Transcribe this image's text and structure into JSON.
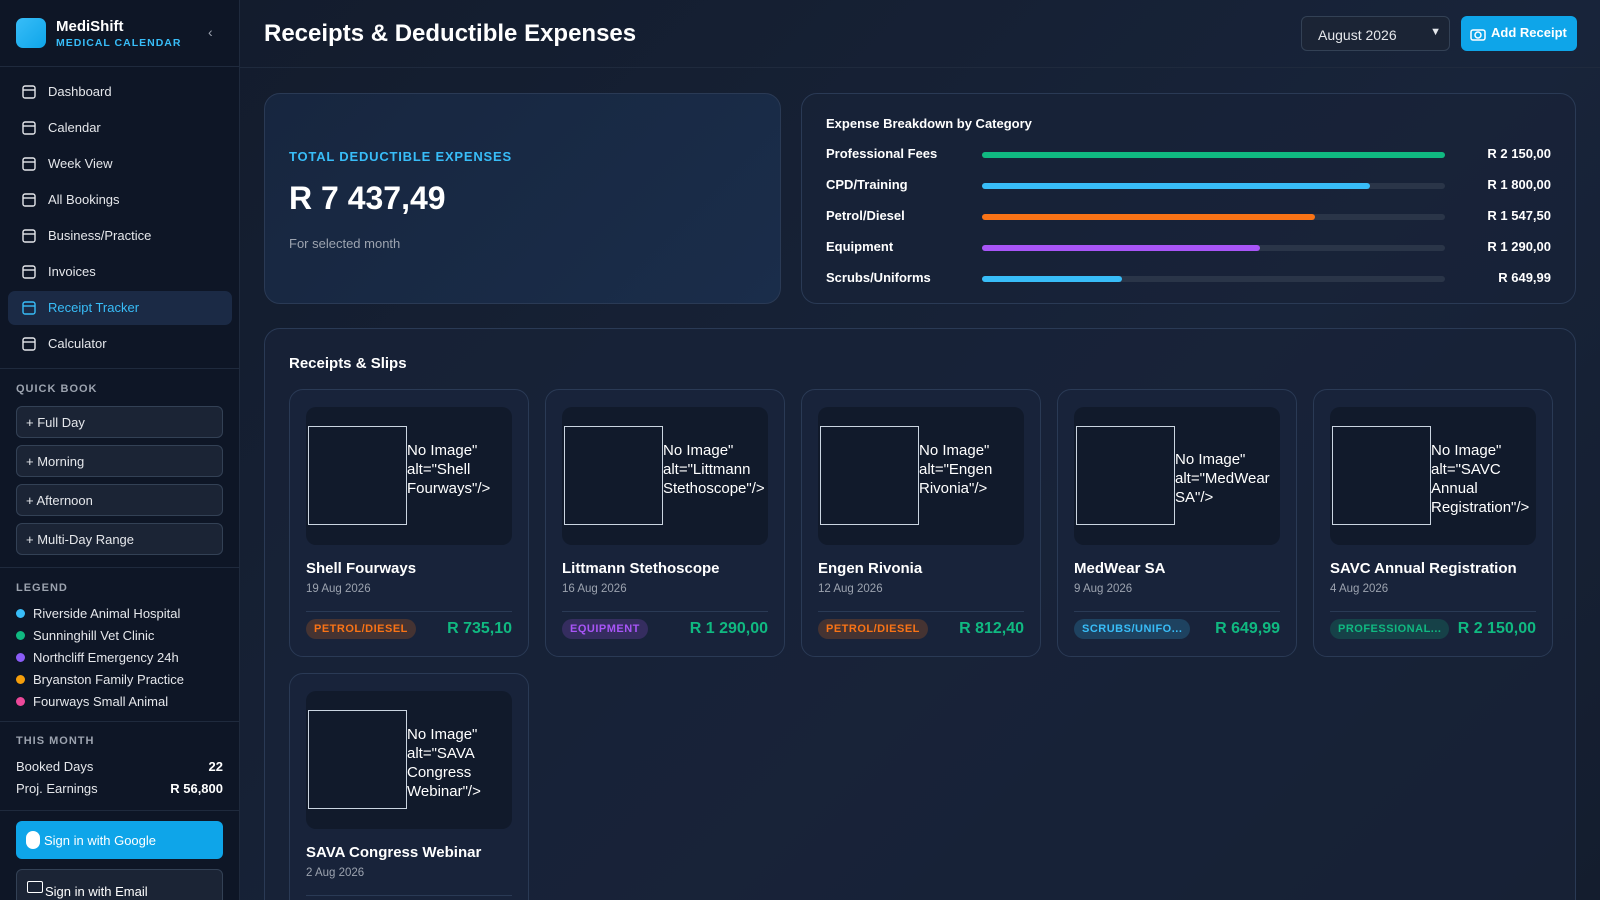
{
  "sidebar": {
    "brand": {
      "name": "MediShift",
      "tagline": "MEDICAL CALENDAR"
    },
    "nav": [
      "Dashboard",
      "Calendar",
      "Week View",
      "All Bookings",
      "Business/Practice",
      "Invoices",
      "Receipt Tracker",
      "Calculator"
    ],
    "quick_book": {
      "title": "QUICK BOOK",
      "buttons": [
        "+ Full Day",
        "+ Morning",
        "+ Afternoon",
        "+ Multi-Day Range"
      ]
    },
    "legend": {
      "title": "LEGEND",
      "items": [
        {
          "label": "Riverside Animal Hospital",
          "color": "#38bdf8"
        },
        {
          "label": "Sunninghill Vet Clinic",
          "color": "#10b981"
        },
        {
          "label": "Northcliff Emergency 24h",
          "color": "#8b5cf6"
        },
        {
          "label": "Bryanston Family Practice",
          "color": "#f59e0b"
        },
        {
          "label": "Fourways Small Animal",
          "color": "#ec4899"
        }
      ]
    },
    "this_month": {
      "title": "THIS MONTH",
      "rows": [
        {
          "label": "Booked Days",
          "value": "22"
        },
        {
          "label": "Proj. Earnings",
          "value": "R 56,800"
        }
      ]
    },
    "auth": {
      "google": "Sign in with Google",
      "email": "Sign in with Email"
    }
  },
  "header": {
    "title": "Receipts & Deductible Expenses",
    "month": "August 2026",
    "add_button": "Add Receipt"
  },
  "summary": {
    "label": "TOTAL DEDUCTIBLE EXPENSES",
    "amount": "R 7 437,49",
    "note": "For selected month"
  },
  "breakdown": {
    "title": "Expense Breakdown by Category",
    "items": [
      {
        "category": "Professional Fees",
        "value": 2150,
        "label": "R 2 150,00",
        "color": "#10b981"
      },
      {
        "category": "CPD/Training",
        "value": 1800,
        "label": "R 1 800,00",
        "color": "#38bdf8"
      },
      {
        "category": "Petrol/Diesel",
        "value": 1547.5,
        "label": "R 1 547,50",
        "color": "#f97316"
      },
      {
        "category": "Equipment",
        "value": 1290,
        "label": "R 1 290,00",
        "color": "#a855f7"
      },
      {
        "category": "Scrubs/Uniforms",
        "value": 649.99,
        "label": "R 649,99",
        "color": "#38bdf8"
      }
    ]
  },
  "receipts": {
    "title": "Receipts & Slips",
    "items": [
      {
        "image_alt": "No Image\" alt=\"Shell Fourways\"/>",
        "name": "Shell Fourways",
        "date": "19 Aug 2026",
        "category": "PETROL/DIESEL",
        "amount": "R 735,10",
        "color": "#f97316"
      },
      {
        "image_alt": "No Image\" alt=\"Littmann Stethoscope\"/>",
        "name": "Littmann Stethoscope",
        "date": "16 Aug 2026",
        "category": "EQUIPMENT",
        "amount": "R 1 290,00",
        "color": "#a855f7"
      },
      {
        "image_alt": "No Image\" alt=\"Engen Rivonia\"/>",
        "name": "Engen Rivonia",
        "date": "12 Aug 2026",
        "category": "PETROL/DIESEL",
        "amount": "R 812,40",
        "color": "#f97316"
      },
      {
        "image_alt": "No Image\" alt=\"MedWear SA\"/>",
        "name": "MedWear SA",
        "date": "9 Aug 2026",
        "category": "SCRUBS/UNIFO...",
        "amount": "R 649,99",
        "color": "#38bdf8"
      },
      {
        "image_alt": "No Image\" alt=\"SAVC Annual Registration\"/>",
        "name": "SAVC Annual Registration",
        "date": "4 Aug 2026",
        "category": "PROFESSIONAL...",
        "amount": "R 2 150,00",
        "color": "#10b981"
      },
      {
        "image_alt": "No Image\" alt=\"SAVA Congress Webinar\"/>",
        "name": "SAVA Congress Webinar",
        "date": "2 Aug 2026",
        "category": "",
        "amount": "",
        "color": "#10b981"
      }
    ]
  }
}
